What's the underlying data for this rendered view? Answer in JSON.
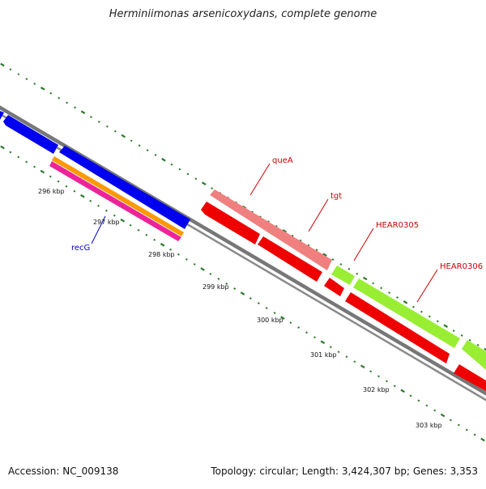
{
  "title": "Herminiimonas arsenicoxydans, complete genome",
  "footer": {
    "accession": "Accession: NC_009138",
    "summary": "Topology: circular; Length: 3,424,307 bp; Genes: 3,353"
  },
  "ticks": [
    "296 kbp",
    "297 kbp",
    "298 kbp",
    "299 kbp",
    "300 kbp",
    "301 kbp",
    "302 kbp",
    "303 kbp"
  ],
  "gene_labels": {
    "queA": "queA",
    "tgt": "tgt",
    "HEAR0305": "HEAR0305",
    "HEAR0306": "HEAR0306",
    "recG": "recG"
  },
  "colors": {
    "backbone": "#7a7a7a",
    "tick": "#2a7a2a",
    "blue": "#0000ee",
    "red": "#ee0000",
    "pink": "#f08080",
    "green": "#99ee33",
    "orange": "#ff9900",
    "magenta": "#ee2299",
    "label_red": "#cc0000",
    "label_blue": "#0000cc"
  }
}
